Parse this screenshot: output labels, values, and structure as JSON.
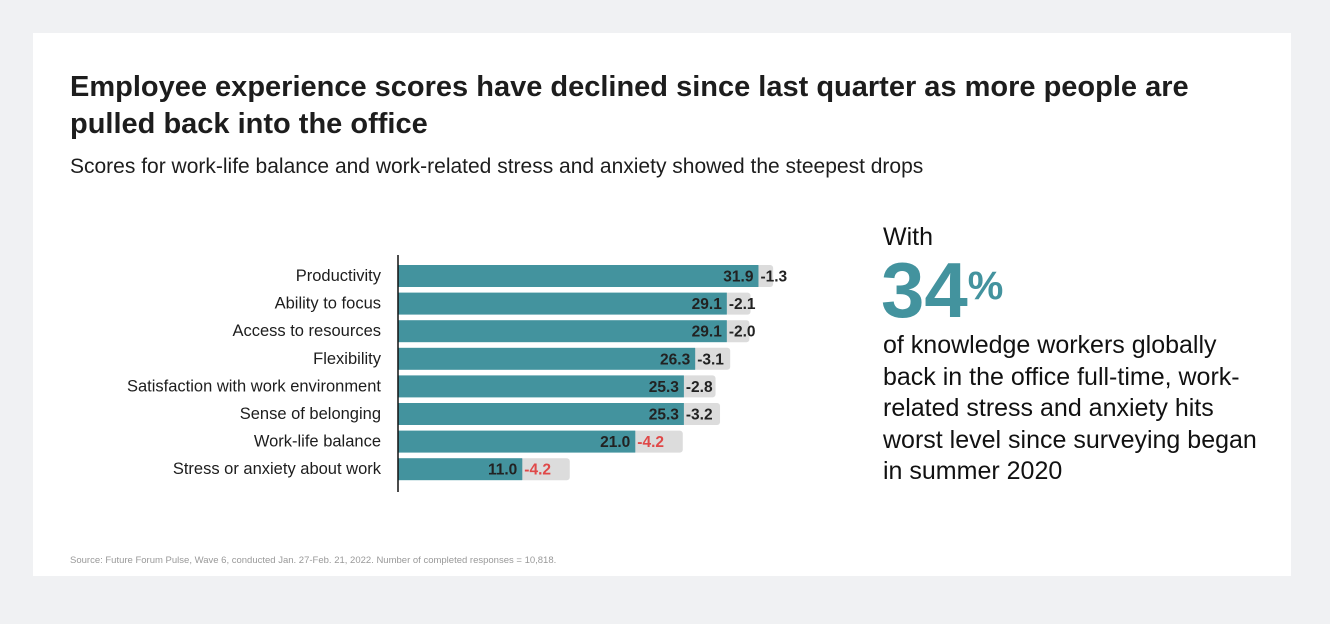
{
  "header": {
    "title": "Employee experience scores have declined since last quarter as more people are pulled back into the office",
    "subtitle": "Scores for work-life balance and work-related stress and anxiety showed the steepest drops"
  },
  "callout": {
    "prefix": "With",
    "number": "34",
    "unit": "%",
    "text": "of knowledge workers globally back in the office full-time, work-related stress and anxiety hits worst level since surveying began in summer 2020"
  },
  "source": "Source: Future Forum Pulse, Wave 6, conducted Jan. 27-Feb. 21, 2022. Number of completed responses = 10,818.",
  "colors": {
    "bar": "#43939e",
    "change_bg": "#dcdcdc",
    "change_text": "#222222",
    "change_highlight": "#e04848"
  },
  "chart_data": {
    "type": "bar",
    "orientation": "horizontal",
    "categories": [
      "Productivity",
      "Ability to focus",
      "Access to resources",
      "Flexibility",
      "Satisfaction with work environment",
      "Sense of belonging",
      "Work-life balance",
      "Stress or anxiety about work"
    ],
    "series": [
      {
        "values": [
          31.9,
          29.1,
          29.1,
          26.3,
          25.3,
          25.3,
          21.0,
          11.0
        ],
        "labels": [
          "31.9",
          "29.1",
          "29.1",
          "26.3",
          "25.3",
          "25.3",
          "21.0",
          "11.0"
        ]
      },
      {
        "values": [
          -1.3,
          -2.1,
          -2.0,
          -3.1,
          -2.8,
          -3.2,
          -4.2,
          -4.2
        ],
        "labels": [
          "-1.3",
          "-2.1",
          "-2.0",
          "-3.1",
          "-2.8",
          "-3.2",
          "-4.2",
          "-4.2"
        ],
        "highlighted": [
          false,
          false,
          false,
          false,
          false,
          false,
          true,
          true
        ]
      }
    ],
    "grid": false
  }
}
